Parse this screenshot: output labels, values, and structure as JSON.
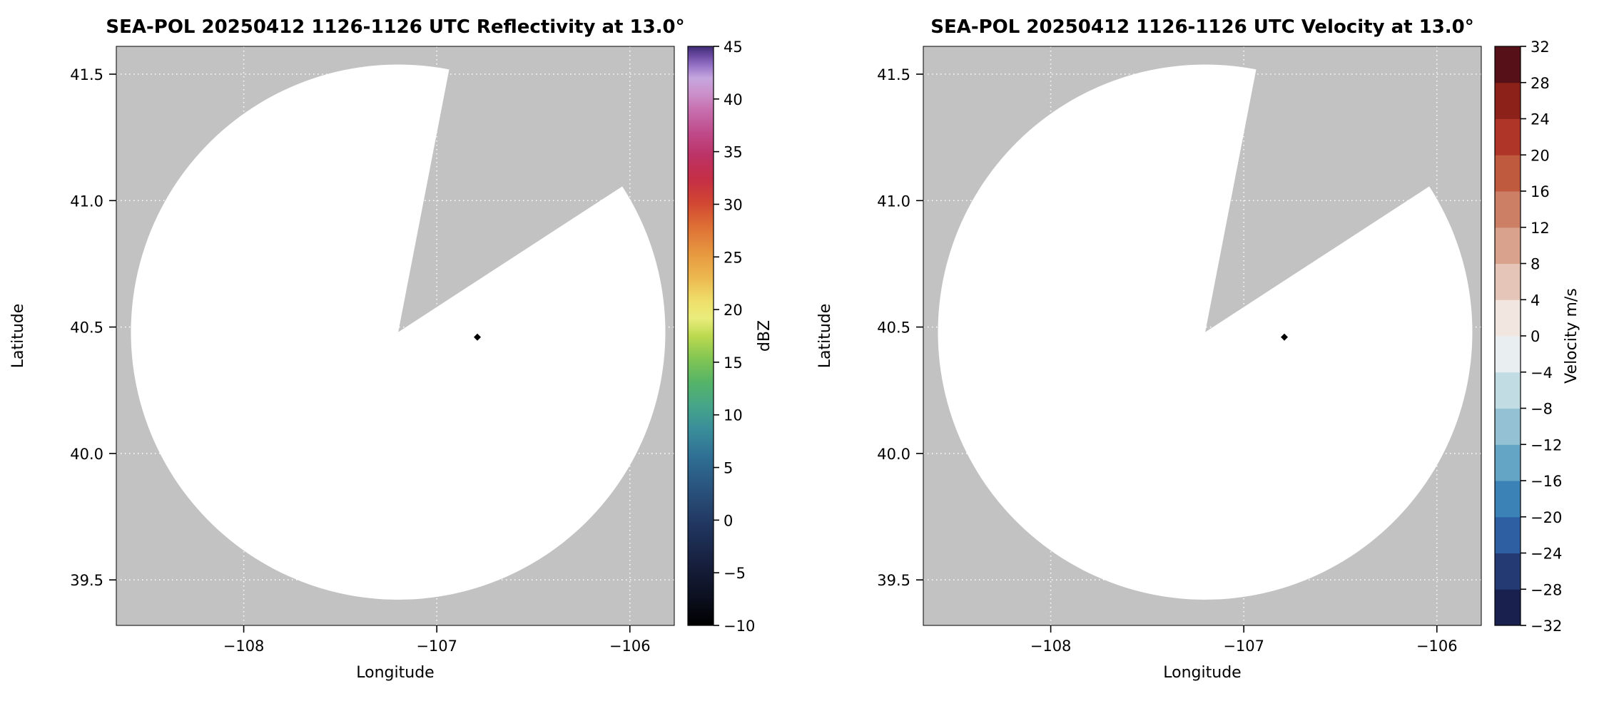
{
  "style": {
    "figure_bg": "#ffffff",
    "plot_bg": "#c2c2c2",
    "grid_color": "#ffffff",
    "scan_fill": "#ffffff",
    "marker_color": "#000000",
    "text_color": "#000000"
  },
  "chart_data": [
    {
      "type": "heatmap",
      "field": "reflectivity",
      "title": "SEA-POL 20250412 1126-1126 UTC Reflectivity at 13.0°",
      "xlabel": "Longitude",
      "ylabel": "Latitude",
      "xlim": [
        -108.66,
        -105.77
      ],
      "ylim": [
        39.32,
        41.61
      ],
      "xticks": [
        {
          "v": -108,
          "label": "−108"
        },
        {
          "v": -107,
          "label": "−107"
        },
        {
          "v": -106,
          "label": "−106"
        }
      ],
      "yticks": [
        {
          "v": 41.5,
          "label": "41.5"
        },
        {
          "v": 41.0,
          "label": "41.0"
        },
        {
          "v": 40.5,
          "label": "40.5"
        },
        {
          "v": 40.0,
          "label": "40.0"
        },
        {
          "v": 39.5,
          "label": "39.5"
        }
      ],
      "grid": true,
      "radar": {
        "lon": -107.2,
        "lat": 40.48,
        "r_lon": 1.384,
        "r_lat": 1.058,
        "gap_start_az": 11,
        "gap_end_az": 57
      },
      "marker": {
        "lon": -106.79,
        "lat": 40.46
      },
      "field_summary": "Scanned area rendered blank/white (no reflectivity echoes shown between -10 and 45 dBZ); gray wedge from azimuth 11° to 57° has no coverage; small black site marker at (-106.79, 40.46)",
      "colorbar": {
        "label": "dBZ",
        "vmin": -10,
        "vmax": 45,
        "type": "gradient",
        "ticks": [
          {
            "v": 45,
            "label": "45"
          },
          {
            "v": 40,
            "label": "40"
          },
          {
            "v": 35,
            "label": "35"
          },
          {
            "v": 30,
            "label": "30"
          },
          {
            "v": 25,
            "label": "25"
          },
          {
            "v": 20,
            "label": "20"
          },
          {
            "v": 15,
            "label": "15"
          },
          {
            "v": 10,
            "label": "10"
          },
          {
            "v": 5,
            "label": "5"
          },
          {
            "v": 0,
            "label": "0"
          },
          {
            "v": -5,
            "label": "−5"
          },
          {
            "v": -10,
            "label": "−10"
          }
        ],
        "stops": [
          {
            "f": 0.0,
            "c": "#000000"
          },
          {
            "f": 0.05,
            "c": "#0c1020"
          },
          {
            "f": 0.11,
            "c": "#17203f"
          },
          {
            "f": 0.17,
            "c": "#20355e"
          },
          {
            "f": 0.23,
            "c": "#28507a"
          },
          {
            "f": 0.29,
            "c": "#2f6e94"
          },
          {
            "f": 0.34,
            "c": "#3a8f9a"
          },
          {
            "f": 0.38,
            "c": "#46a588"
          },
          {
            "f": 0.42,
            "c": "#55b467"
          },
          {
            "f": 0.46,
            "c": "#81c553"
          },
          {
            "f": 0.5,
            "c": "#bcd94f"
          },
          {
            "f": 0.53,
            "c": "#e9ed7c"
          },
          {
            "f": 0.56,
            "c": "#efdf6a"
          },
          {
            "f": 0.6,
            "c": "#ecb84f"
          },
          {
            "f": 0.64,
            "c": "#e79a40"
          },
          {
            "f": 0.69,
            "c": "#dd6e35"
          },
          {
            "f": 0.73,
            "c": "#d14632"
          },
          {
            "f": 0.77,
            "c": "#c52f45"
          },
          {
            "f": 0.81,
            "c": "#bc3264"
          },
          {
            "f": 0.85,
            "c": "#bf4a8a"
          },
          {
            "f": 0.89,
            "c": "#c76fae"
          },
          {
            "f": 0.92,
            "c": "#cb92cc"
          },
          {
            "f": 0.945,
            "c": "#c6a6de"
          },
          {
            "f": 0.965,
            "c": "#9b77ca"
          },
          {
            "f": 0.985,
            "c": "#68489f"
          },
          {
            "f": 1.0,
            "c": "#3e2c74"
          }
        ]
      }
    },
    {
      "type": "heatmap",
      "field": "velocity",
      "title": "SEA-POL 20250412 1126-1126 UTC Velocity at 13.0°",
      "xlabel": "Longitude",
      "ylabel": "Latitude",
      "xlim": [
        -108.66,
        -105.77
      ],
      "ylim": [
        39.32,
        41.61
      ],
      "xticks": [
        {
          "v": -108,
          "label": "−108"
        },
        {
          "v": -107,
          "label": "−107"
        },
        {
          "v": -106,
          "label": "−106"
        }
      ],
      "yticks": [
        {
          "v": 41.5,
          "label": "41.5"
        },
        {
          "v": 41.0,
          "label": "41.0"
        },
        {
          "v": 40.5,
          "label": "40.5"
        },
        {
          "v": 40.0,
          "label": "40.0"
        },
        {
          "v": 39.5,
          "label": "39.5"
        }
      ],
      "grid": true,
      "radar": {
        "lon": -107.2,
        "lat": 40.48,
        "r_lon": 1.384,
        "r_lat": 1.058,
        "gap_start_az": 11,
        "gap_end_az": 57
      },
      "marker": {
        "lon": -106.79,
        "lat": 40.46
      },
      "field_summary": "Scanned area rendered blank/white (no velocity data shown between -32 and 32 m/s); gray wedge from azimuth 11° to 57° has no coverage; small black site marker at (-106.79, 40.46)",
      "colorbar": {
        "label": "Velocity m/s",
        "vmin": -32,
        "vmax": 32,
        "type": "blocks",
        "ticks": [
          {
            "v": 32,
            "label": "32"
          },
          {
            "v": 28,
            "label": "28"
          },
          {
            "v": 24,
            "label": "24"
          },
          {
            "v": 20,
            "label": "20"
          },
          {
            "v": 16,
            "label": "16"
          },
          {
            "v": 12,
            "label": "12"
          },
          {
            "v": 8,
            "label": "8"
          },
          {
            "v": 4,
            "label": "4"
          },
          {
            "v": 0,
            "label": "0"
          },
          {
            "v": -4,
            "label": "−4"
          },
          {
            "v": -8,
            "label": "−8"
          },
          {
            "v": -12,
            "label": "−12"
          },
          {
            "v": -16,
            "label": "−16"
          },
          {
            "v": -20,
            "label": "−20"
          },
          {
            "v": -24,
            "label": "−24"
          },
          {
            "v": -28,
            "label": "−28"
          },
          {
            "v": -32,
            "label": "−32"
          }
        ],
        "blocks": [
          "#19204e",
          "#243a72",
          "#2d5fa2",
          "#3b82b7",
          "#64a4c4",
          "#94c1d4",
          "#c2dce4",
          "#e9eef1",
          "#f2e6e1",
          "#e5c5b8",
          "#d8a28d",
          "#cc7f64",
          "#c05a3f",
          "#ae3528",
          "#8c2119",
          "#551018"
        ]
      }
    }
  ]
}
